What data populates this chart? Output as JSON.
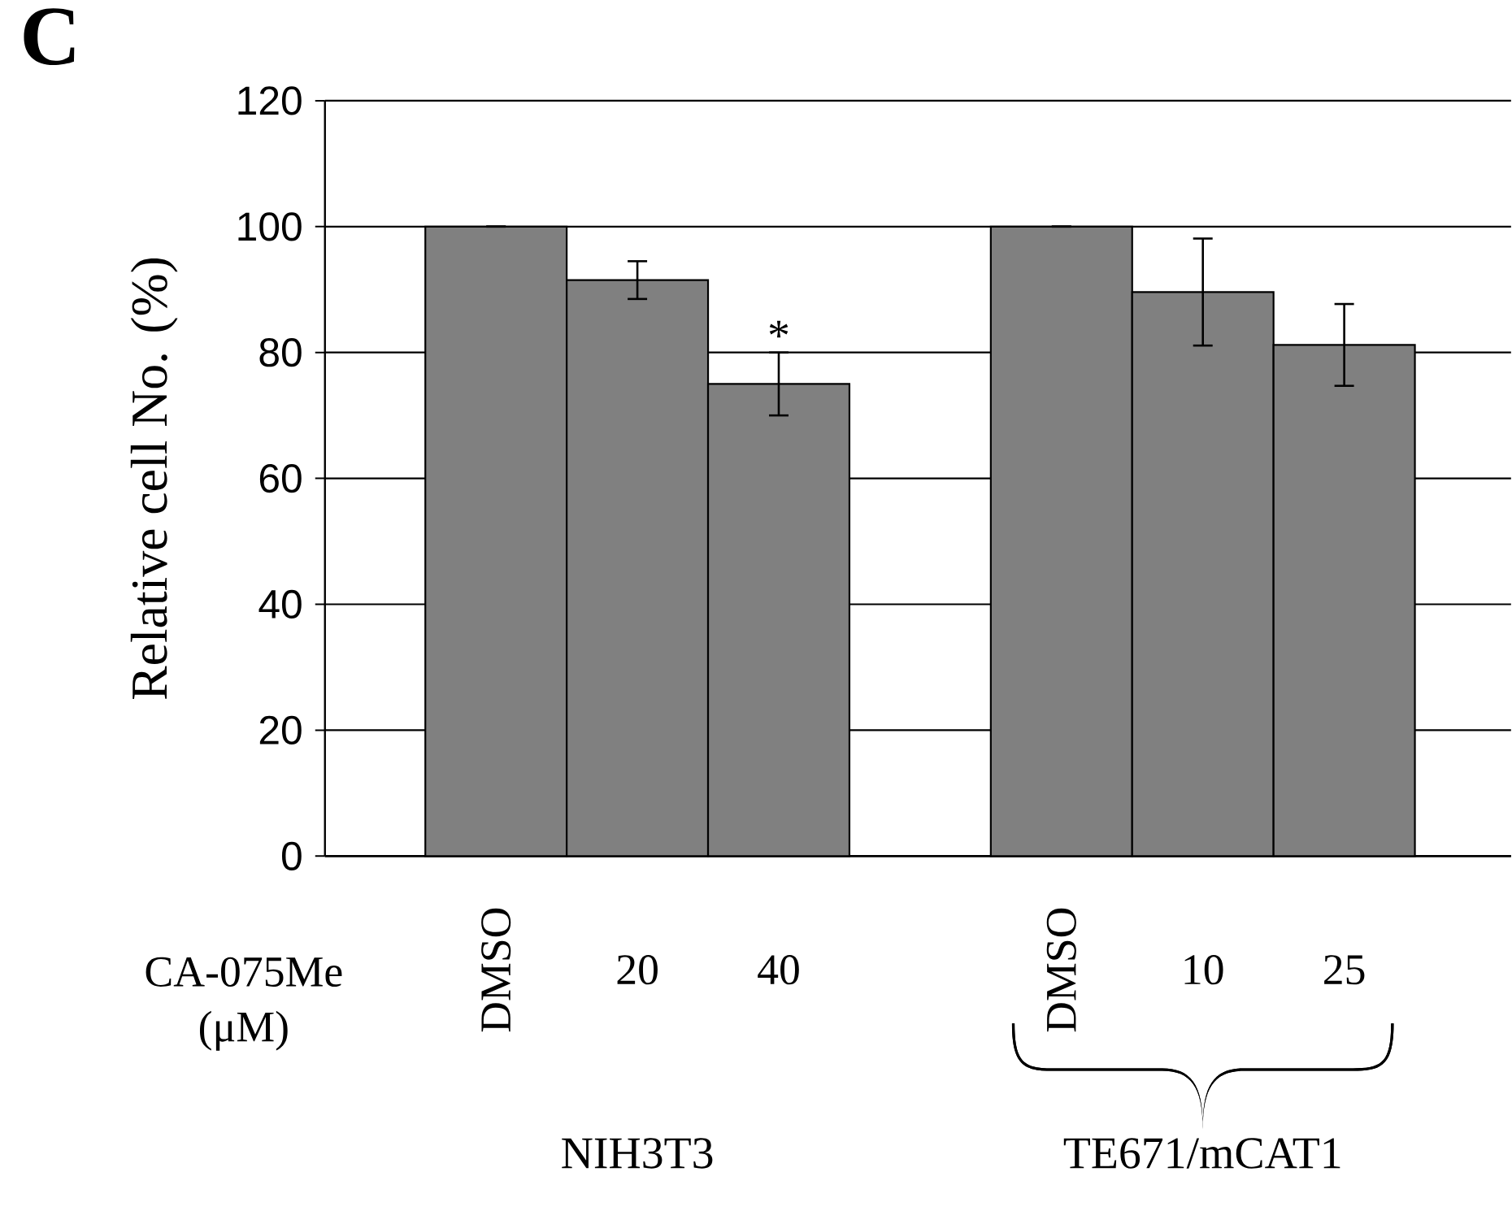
{
  "chart_data": {
    "type": "bar",
    "ylabel": "Relative cell No. (%)",
    "categories": [
      "DMSO",
      "20",
      "40",
      null,
      "DMSO",
      "10",
      "25"
    ],
    "values": [
      100,
      91.5,
      75,
      null,
      100,
      89.6,
      81.2
    ],
    "errors": [
      null,
      3,
      5,
      null,
      null,
      8.5,
      6.5
    ],
    "color": "#808080",
    "ylim": [
      0,
      120
    ],
    "yticks": [
      0,
      20,
      40,
      60,
      80,
      100,
      120
    ],
    "grid": "y",
    "annotations": [
      "C",
      "CA-075Me (μM)",
      "NIH3T3",
      "TE671/mCAT1",
      "*"
    ]
  }
}
